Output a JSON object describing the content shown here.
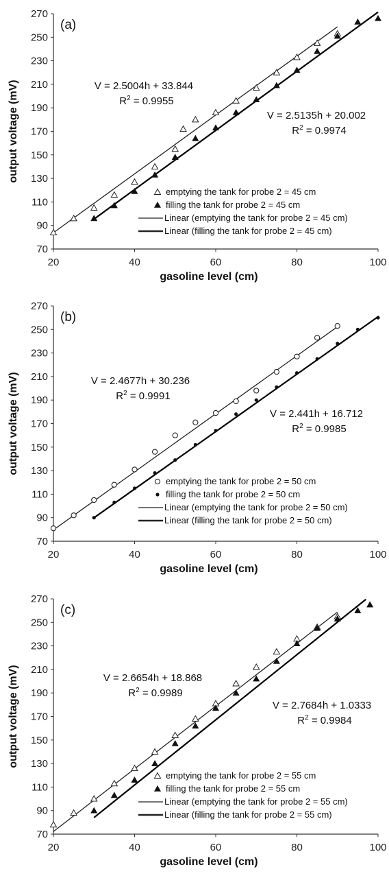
{
  "chart_data": [
    {
      "type": "scatter",
      "panel_label": "(a)",
      "xlabel": "gasoline level (cm)",
      "ylabel": "output voltage (mV)",
      "xlim": [
        20,
        100
      ],
      "ylim": [
        70,
        270
      ],
      "xticks": [
        "20",
        "40",
        "60",
        "80",
        "100"
      ],
      "yticks": [
        "70",
        "90",
        "110",
        "130",
        "150",
        "170",
        "190",
        "210",
        "230",
        "250",
        "270"
      ],
      "series": [
        {
          "name": "emptying the tank for probe 2 = 45 cm",
          "marker": "open-triangle",
          "x": [
            20,
            25,
            30,
            35,
            40,
            45,
            50,
            52,
            55,
            60,
            65,
            70,
            75,
            80,
            85,
            90
          ],
          "y": [
            84,
            96,
            105,
            116,
            127,
            140,
            155,
            172,
            180,
            186,
            196,
            207,
            220,
            233,
            245,
            253
          ]
        },
        {
          "name": "filling the tank for probe 2 = 45 cm",
          "marker": "filled-triangle",
          "x": [
            30,
            35,
            40,
            45,
            50,
            55,
            60,
            65,
            70,
            75,
            80,
            85,
            90,
            95,
            100
          ],
          "y": [
            96,
            107,
            119,
            133,
            148,
            164,
            173,
            186,
            197,
            209,
            222,
            238,
            251,
            263,
            266
          ]
        },
        {
          "name": "Linear (emptying the tank for probe 2 = 45 cm)",
          "type": "line",
          "slope": 2.5004,
          "intercept": 33.844,
          "x_range": [
            20,
            90
          ]
        },
        {
          "name": "Linear (filling the tank for probe 2 = 45 cm)",
          "type": "line",
          "slope": 2.5135,
          "intercept": 20.002,
          "x_range": [
            30,
            100
          ]
        }
      ],
      "annotations": [
        {
          "equation": "V = 2.5004h + 33.844",
          "r2_text": "= 0.9955"
        },
        {
          "equation": "V = 2.5135h + 20.002",
          "r2_text": "= 0.9974"
        }
      ]
    },
    {
      "type": "scatter",
      "panel_label": "(b)",
      "xlabel": "gasoline level (cm)",
      "ylabel": "output voltage (mV)",
      "xlim": [
        20,
        100
      ],
      "ylim": [
        70,
        270
      ],
      "xticks": [
        "20",
        "40",
        "60",
        "80",
        "100"
      ],
      "yticks": [
        "70",
        "90",
        "110",
        "130",
        "150",
        "170",
        "190",
        "210",
        "230",
        "250",
        "270"
      ],
      "series": [
        {
          "name": "emptying the tank for probe 2 = 50 cm",
          "marker": "open-circle",
          "x": [
            20,
            25,
            30,
            35,
            40,
            45,
            50,
            55,
            60,
            65,
            70,
            75,
            80,
            85,
            90
          ],
          "y": [
            81,
            92,
            105,
            118,
            131,
            146,
            160,
            171,
            179,
            189,
            198,
            214,
            227,
            243,
            253
          ]
        },
        {
          "name": "filling the tank for probe 2 = 50 cm",
          "marker": "filled-dot",
          "x": [
            30,
            35,
            40,
            45,
            50,
            55,
            60,
            65,
            70,
            75,
            80,
            85,
            90,
            95,
            100
          ],
          "y": [
            90,
            103,
            115,
            128,
            139,
            152,
            164,
            178,
            190,
            201,
            213,
            225,
            238,
            250,
            260
          ]
        },
        {
          "name": "Linear (emptying the tank for probe 2 = 50 cm)",
          "type": "line",
          "slope": 2.4677,
          "intercept": 30.236,
          "x_range": [
            20,
            90
          ]
        },
        {
          "name": "Linear (filling the tank for probe 2 = 50 cm)",
          "type": "line",
          "slope": 2.441,
          "intercept": 16.712,
          "x_range": [
            30,
            100
          ]
        }
      ],
      "annotations": [
        {
          "equation": "V = 2.4677h + 30.236",
          "r2_text": "= 0.9991"
        },
        {
          "equation": "V = 2.441h + 16.712",
          "r2_text": "= 0.9985"
        }
      ]
    },
    {
      "type": "scatter",
      "panel_label": "(c)",
      "xlabel": "gasoline level (cm)",
      "ylabel": "output voltage (mV)",
      "xlim": [
        20,
        100
      ],
      "ylim": [
        70,
        270
      ],
      "xticks": [
        "20",
        "40",
        "60",
        "80",
        "100"
      ],
      "yticks": [
        "70",
        "90",
        "110",
        "130",
        "150",
        "170",
        "190",
        "210",
        "230",
        "250",
        "270"
      ],
      "series": [
        {
          "name": "emptying the tank for probe 2 = 55 cm",
          "marker": "open-triangle",
          "x": [
            20,
            25,
            30,
            35,
            40,
            45,
            50,
            55,
            60,
            65,
            70,
            75,
            80,
            85,
            90
          ],
          "y": [
            78,
            88,
            100,
            113,
            126,
            140,
            154,
            168,
            181,
            198,
            212,
            225,
            236,
            246,
            255
          ]
        },
        {
          "name": "filling the tank for probe 2 = 55 cm",
          "marker": "filled-triangle",
          "x": [
            30,
            35,
            40,
            45,
            50,
            55,
            60,
            65,
            70,
            75,
            80,
            85,
            90,
            95,
            98
          ],
          "y": [
            90,
            103,
            116,
            130,
            147,
            162,
            177,
            190,
            202,
            217,
            232,
            245,
            253,
            260,
            265
          ]
        },
        {
          "name": "Linear (emptying the tank for probe 2 = 55 cm)",
          "type": "line",
          "slope": 2.6654,
          "intercept": 18.868,
          "x_range": [
            20,
            90
          ]
        },
        {
          "name": "Linear (filling the tank for probe 2 = 55 cm)",
          "type": "line",
          "slope": 2.7684,
          "intercept": 1.0333,
          "x_range": [
            30,
            97
          ]
        }
      ],
      "annotations": [
        {
          "equation": "V = 2.6654h + 18.868",
          "r2_text": "= 0.9989"
        },
        {
          "equation": "V = 2.7684h + 1.0333",
          "r2_text": "= 0.9984"
        }
      ]
    }
  ]
}
